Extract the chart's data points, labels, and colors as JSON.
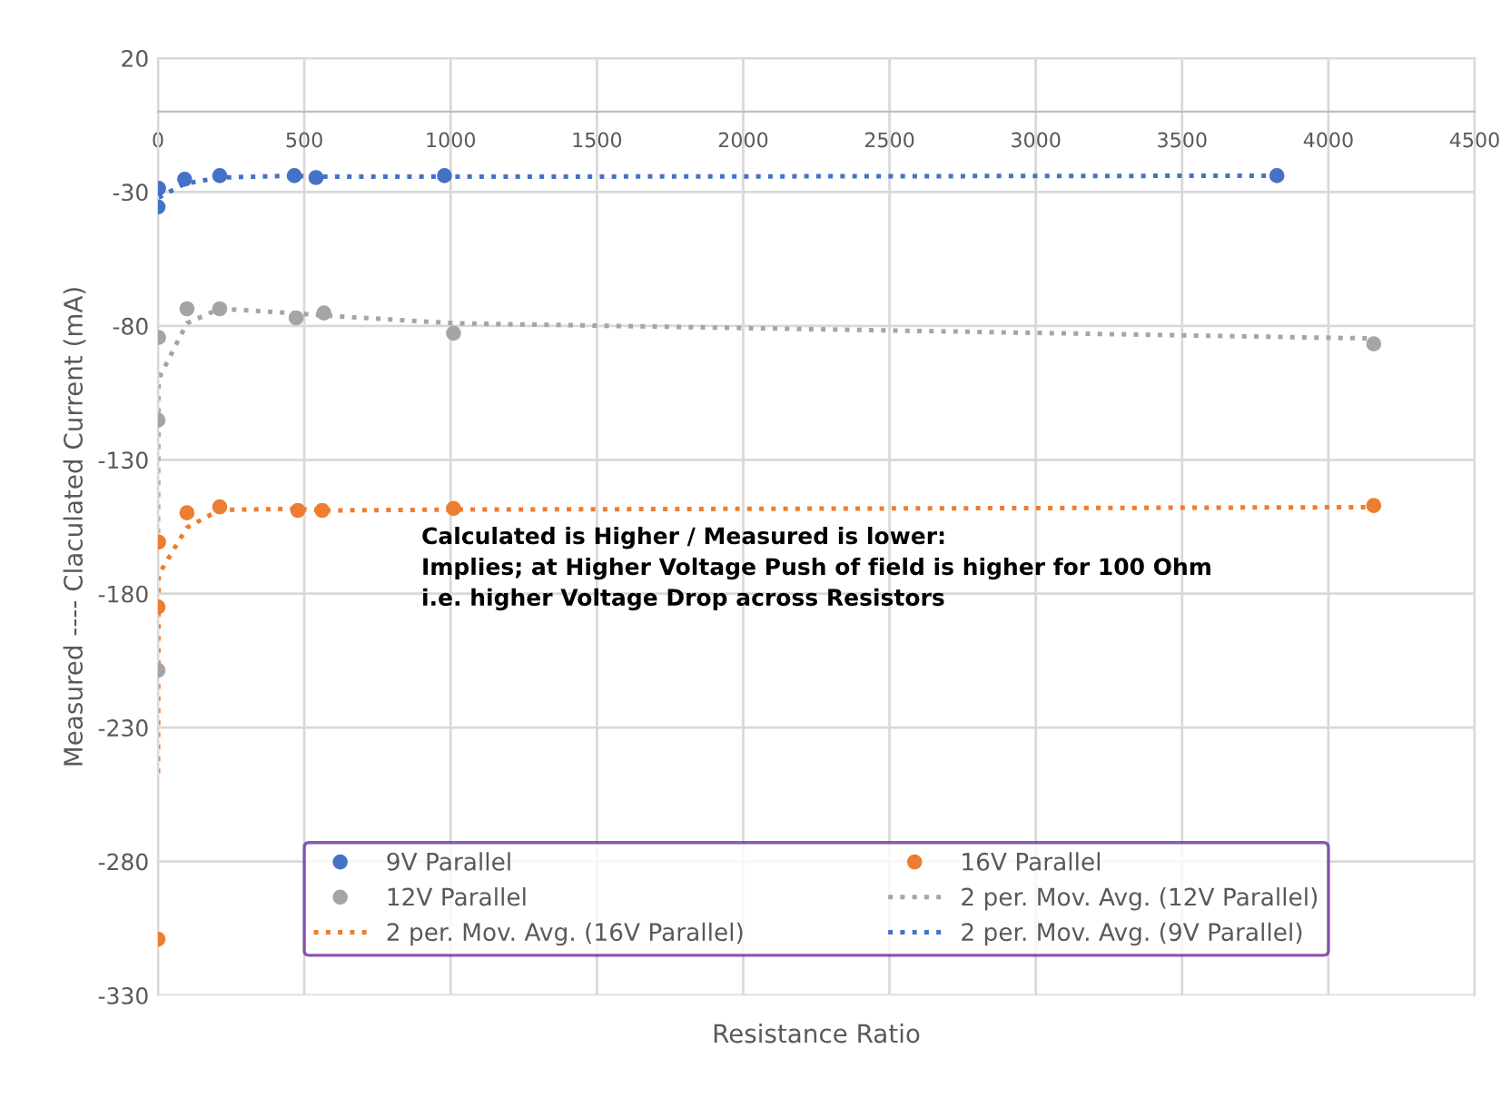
{
  "chart_data": {
    "type": "scatter",
    "xlabel": "Resistance Ratio",
    "ylabel": "Measured ---- Claculated Current (mA)",
    "xlim": [
      0,
      4500
    ],
    "xticks": [
      0,
      500,
      1000,
      1500,
      2000,
      2500,
      3000,
      3500,
      4000,
      4500
    ],
    "ylim": [
      -330,
      20
    ],
    "yticks": [
      -330,
      -280,
      -230,
      -180,
      -130,
      -80,
      -30,
      20
    ],
    "grid": true,
    "legend": "bottom",
    "marker": "circle",
    "annotations": [
      "Calculated is Higher / Measured is lower:\nImplies; at Higher Voltage Push of field is higher for 100 Ohm\ni.e. higher Voltage Drop across Resistors"
    ],
    "series": [
      {
        "name": "9V Parallel",
        "color": "#4472c4",
        "x": [
          0,
          2,
          91,
          211,
          466,
          540,
          979,
          3824
        ],
        "values": [
          -35.6,
          -28.6,
          -25.2,
          -23.9,
          -23.9,
          -24.6,
          -23.9,
          -23.9
        ]
      },
      {
        "name": "12V Parallel",
        "color": "#a5a5a5",
        "x": [
          0,
          0,
          2,
          99,
          211,
          472,
          567,
          1010,
          4155
        ],
        "values": [
          -208.6,
          -115.2,
          -84.3,
          -73.6,
          -73.6,
          -77,
          -75.2,
          -82.7,
          -86.7
        ]
      },
      {
        "name": "2 per. Mov. Avg. (16V Parallel)",
        "type": "line",
        "line_style": "dotted",
        "marker": "none",
        "color": "#ed7d31",
        "x": [
          0,
          2,
          99,
          211,
          478,
          561,
          1010,
          4155
        ],
        "values": [
          -247,
          -172.9,
          -155.3,
          -148.7,
          -148.3,
          -148.9,
          -148.6,
          -147.7
        ]
      },
      {
        "name": "16V Parallel",
        "color": "#ed7d31",
        "x": [
          0,
          0,
          2,
          99,
          211,
          478,
          561,
          1010,
          4155
        ],
        "values": [
          -309,
          -185,
          -160.7,
          -149.8,
          -147.6,
          -148.9,
          -148.9,
          -148.2,
          -147.1
        ]
      },
      {
        "name": "2 per. Mov. Avg. (12V Parallel)",
        "type": "line",
        "line_style": "dotted",
        "marker": "none",
        "color": "#a5a5a5",
        "x": [
          0,
          2,
          99,
          211,
          472,
          567,
          1010,
          4155
        ],
        "values": [
          -161.9,
          -99.8,
          -79,
          -73.6,
          -75.3,
          -76.1,
          -79,
          -84.7
        ]
      },
      {
        "name": "2 per. Mov. Avg. (9V Parallel)",
        "type": "line",
        "line_style": "dotted",
        "marker": "none",
        "color": "#4472c4",
        "x": [
          2,
          91,
          211,
          466,
          540,
          979,
          3824
        ],
        "values": [
          -32.1,
          -26.9,
          -24.6,
          -23.9,
          -24.3,
          -24.3,
          -23.9
        ]
      }
    ]
  }
}
